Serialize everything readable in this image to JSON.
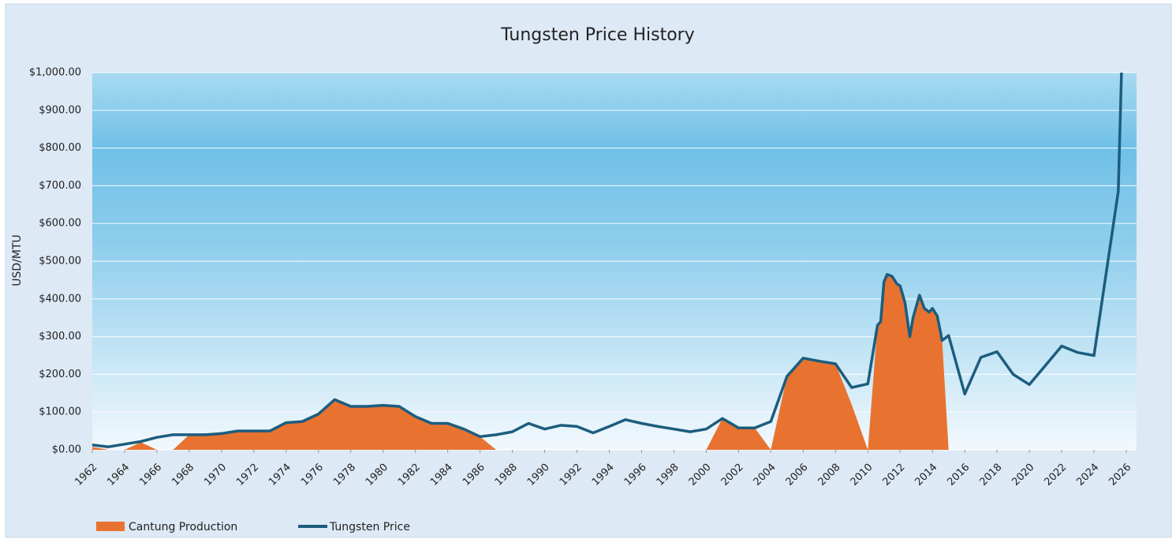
{
  "chart_data": {
    "type": "line",
    "title": "Tungsten Price History",
    "ylabel": "USD/MTU",
    "x": [
      1962,
      1963,
      1964,
      1965,
      1966,
      1967,
      1968,
      1969,
      1970,
      1971,
      1972,
      1973,
      1974,
      1975,
      1976,
      1977,
      1978,
      1979,
      1980,
      1981,
      1982,
      1983,
      1984,
      1985,
      1986,
      1987,
      1988,
      1989,
      1990,
      1991,
      1992,
      1993,
      1994,
      1995,
      1996,
      1997,
      1998,
      1999,
      2000,
      2001,
      2002,
      2003,
      2004,
      2005,
      2006,
      2007,
      2008,
      2009,
      2010,
      2010.6,
      2010.8,
      2011,
      2011.2,
      2011.5,
      2011.8,
      2012,
      2012.3,
      2012.6,
      2012.8,
      2013.2,
      2013.5,
      2013.8,
      2014,
      2014.3,
      2014.6,
      2015,
      2016,
      2017,
      2018,
      2019,
      2020,
      2022,
      2023,
      2024,
      2025.5,
      2025.7
    ],
    "series": [
      {
        "name": "Cantung Production",
        "color": "#e87330",
        "area": true,
        "values": [
          8,
          0,
          0,
          20,
          0,
          0,
          40,
          40,
          43,
          50,
          50,
          50,
          72,
          75,
          95,
          133,
          115,
          115,
          118,
          115,
          88,
          70,
          70,
          55,
          35,
          0,
          0,
          0,
          0,
          0,
          0,
          0,
          0,
          0,
          0,
          0,
          0,
          0,
          0,
          83,
          58,
          58,
          0,
          195,
          243,
          235,
          228,
          120,
          0,
          330,
          340,
          445,
          465,
          460,
          440,
          435,
          390,
          300,
          350,
          410,
          375,
          365,
          375,
          355,
          290,
          0,
          0,
          0,
          0,
          0,
          0,
          0,
          0,
          0,
          0,
          0
        ]
      },
      {
        "name": "Tungsten Price",
        "color": "#1c5d7e",
        "area": false,
        "values": [
          13,
          8,
          15,
          22,
          33,
          40,
          40,
          40,
          43,
          50,
          50,
          50,
          72,
          75,
          95,
          133,
          115,
          115,
          118,
          115,
          88,
          70,
          70,
          55,
          35,
          40,
          48,
          70,
          55,
          65,
          62,
          45,
          62,
          80,
          70,
          62,
          55,
          48,
          55,
          83,
          58,
          58,
          75,
          195,
          243,
          235,
          228,
          165,
          175,
          330,
          340,
          445,
          465,
          460,
          440,
          435,
          390,
          300,
          350,
          410,
          375,
          365,
          375,
          355,
          290,
          303,
          148,
          245,
          260,
          200,
          173,
          275,
          258,
          250,
          685,
          1000
        ]
      }
    ],
    "xlim": [
      1962,
      2026
    ],
    "xticks": [
      1962,
      1964,
      1966,
      1968,
      1970,
      1972,
      1974,
      1976,
      1978,
      1980,
      1982,
      1984,
      1986,
      1988,
      1990,
      1992,
      1994,
      1996,
      1998,
      2000,
      2002,
      2004,
      2006,
      2008,
      2010,
      2012,
      2014,
      2016,
      2018,
      2020,
      2022,
      2024,
      2026
    ],
    "ylim": [
      0,
      1000
    ],
    "yticks": [
      {
        "value": 0,
        "label": "$0.00"
      },
      {
        "value": 100,
        "label": "$100.00"
      },
      {
        "value": 200,
        "label": "$200.00"
      },
      {
        "value": 300,
        "label": "$300.00"
      },
      {
        "value": 400,
        "label": "$400.00"
      },
      {
        "value": 500,
        "label": "$500.00"
      },
      {
        "value": 600,
        "label": "$600.00"
      },
      {
        "value": 700,
        "label": "$700.00"
      },
      {
        "value": 800,
        "label": "$800.00"
      },
      {
        "value": 900,
        "label": "$900.00"
      },
      {
        "value": 1000,
        "label": "$1,000.00"
      }
    ],
    "grid": true
  }
}
